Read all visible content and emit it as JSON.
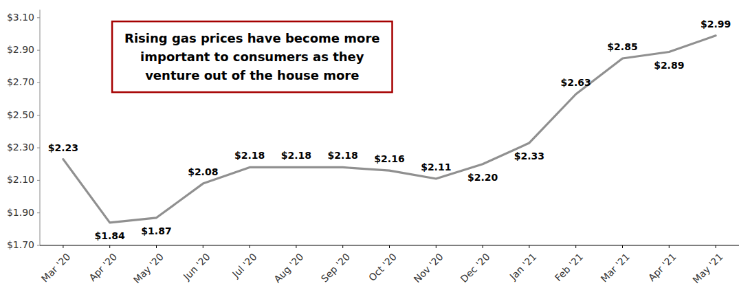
{
  "chart_data": {
    "type": "line",
    "categories": [
      "Mar '20",
      "Apr '20",
      "May '20",
      "Jun '20",
      "Jul '20",
      "Aug '20",
      "Sep '20",
      "Oct '20",
      "Nov '20",
      "Dec '20",
      "Jan '21",
      "Feb '21",
      "Mar '21",
      "Apr '21",
      "May '21"
    ],
    "values": [
      2.23,
      1.84,
      1.87,
      2.08,
      2.18,
      2.18,
      2.18,
      2.16,
      2.11,
      2.2,
      2.33,
      2.63,
      2.85,
      2.89,
      2.99
    ],
    "value_labels": [
      "$2.23",
      "$1.84",
      "$1.87",
      "$2.08",
      "$2.18",
      "$2.18",
      "$2.18",
      "$2.16",
      "$2.11",
      "$2.20",
      "$2.33",
      "$2.63",
      "$2.85",
      "$2.89",
      "$2.99"
    ],
    "data_labels": true,
    "color": "#909090",
    "ylim": [
      1.7,
      3.15
    ],
    "yticks": [
      {
        "value": 1.7,
        "label": "$1.70"
      },
      {
        "value": 1.9,
        "label": "$1.90"
      },
      {
        "value": 2.1,
        "label": "$2.10"
      },
      {
        "value": 2.3,
        "label": "$2.30"
      },
      {
        "value": 2.5,
        "label": "$2.50"
      },
      {
        "value": 2.7,
        "label": "$2.70"
      },
      {
        "value": 2.9,
        "label": "$2.90"
      },
      {
        "value": 3.1,
        "label": "$3.10"
      }
    ],
    "grid": false,
    "annotations": [
      {
        "text": "Rising gas prices have become more\nimportant to consumers as they\nventure out of the house more",
        "color": "#a50000"
      }
    ]
  }
}
